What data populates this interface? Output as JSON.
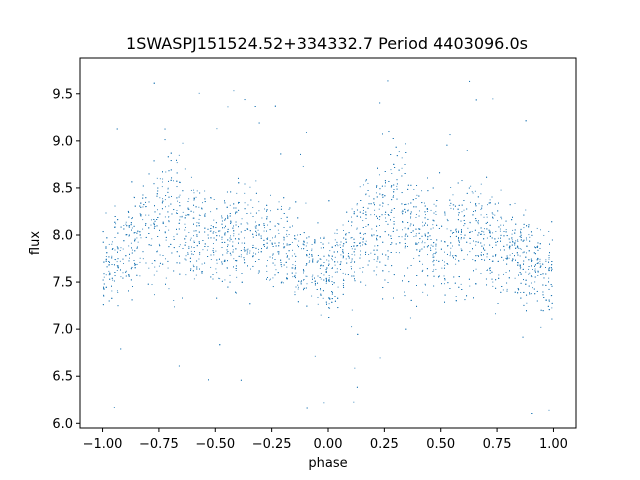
{
  "chart_data": {
    "type": "scatter",
    "title": "1SWASPJ151524.52+334332.7 Period 4403096.0s",
    "xlabel": "phase",
    "ylabel": "flux",
    "xlim": [
      -1.1,
      1.1
    ],
    "ylim": [
      5.95,
      9.88
    ],
    "xticks": [
      -1.0,
      -0.75,
      -0.5,
      -0.25,
      0.0,
      0.25,
      0.5,
      0.75,
      1.0
    ],
    "xtick_labels": [
      "−1.00",
      "−0.75",
      "−0.50",
      "−0.25",
      "0.00",
      "0.25",
      "0.50",
      "0.75",
      "1.00"
    ],
    "yticks": [
      6.0,
      6.5,
      7.0,
      7.5,
      8.0,
      8.5,
      9.0,
      9.5
    ],
    "ytick_labels": [
      "6.0",
      "6.5",
      "7.0",
      "7.5",
      "8.0",
      "8.5",
      "9.0",
      "9.5"
    ],
    "grid": false,
    "marker_color": "#1f77b4",
    "x_range_of_points": [
      -1.0,
      1.0
    ],
    "phase_profile": {
      "phase": [
        0.0,
        0.05,
        0.1,
        0.15,
        0.2,
        0.25,
        0.3,
        0.35,
        0.4,
        0.45,
        0.5,
        0.55,
        0.6,
        0.65,
        0.7,
        0.75,
        0.8,
        0.85,
        0.9,
        0.95,
        1.0
      ],
      "median_flux": [
        7.6,
        7.75,
        7.85,
        8.0,
        8.1,
        8.2,
        8.3,
        8.15,
        8.0,
        7.95,
        7.9,
        7.95,
        8.0,
        8.05,
        7.95,
        7.9,
        7.85,
        7.8,
        7.7,
        7.65,
        7.6
      ],
      "scatter_halfwidth": [
        0.45,
        0.45,
        0.5,
        0.55,
        0.6,
        0.75,
        0.85,
        0.7,
        0.6,
        0.55,
        0.5,
        0.55,
        0.55,
        0.55,
        0.5,
        0.5,
        0.45,
        0.45,
        0.45,
        0.45,
        0.45
      ]
    }
  }
}
